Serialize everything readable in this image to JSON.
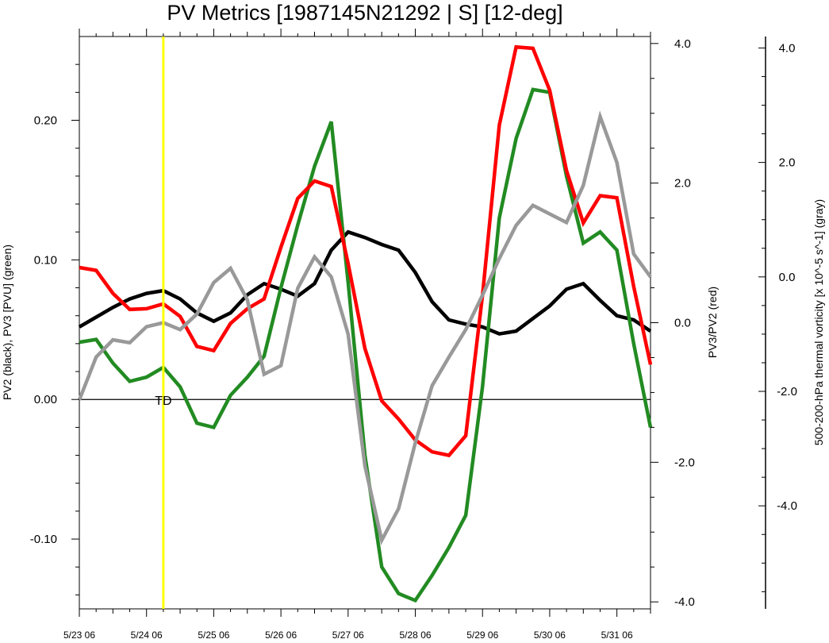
{
  "chart_data": {
    "type": "line",
    "title": "PV Metrics [1987145N21292 | S] [12-deg]",
    "x_tick_labels": [
      "5/23 06",
      "5/24 06",
      "5/25 06",
      "5/26 06",
      "5/27 06",
      "5/28 06",
      "5/29 06",
      "5/30 06",
      "5/31 06"
    ],
    "x_tick_days": [
      0,
      1,
      2,
      3,
      4,
      5,
      6,
      7,
      8
    ],
    "x_range_days": [
      0,
      8.5
    ],
    "x_step_days": 0.25,
    "left_axis": {
      "label": "PV2 (black), PV3 [PVU] (green)",
      "range": [
        -0.15,
        0.26
      ],
      "ticks": [
        -0.1,
        0.0,
        0.1,
        0.2
      ],
      "tick_labels": [
        "-0.10",
        "0.00",
        "0.10",
        "0.20"
      ]
    },
    "right_axis": {
      "label": "PV3/PV2 (red)",
      "range": [
        -4.1,
        4.1
      ],
      "ticks": [
        -4.0,
        -2.0,
        0.0,
        2.0,
        4.0
      ],
      "tick_labels": [
        "-4.0",
        "-2.0",
        "0.0",
        "2.0",
        "4.0"
      ]
    },
    "far_right_axis": {
      "label": "500-200-hPa thermal vorticity [x 10^-5 s^-1] (gray)",
      "range": [
        -5.8,
        4.2
      ],
      "ticks": [
        -4.0,
        -2.0,
        0.0,
        2.0,
        4.0
      ],
      "tick_labels": [
        "-4.0",
        "-2.0",
        "0.0",
        "2.0",
        "4.0"
      ]
    },
    "series": [
      {
        "axis": "left",
        "color": "#000000",
        "values": [
          0.052,
          0.059,
          0.066,
          0.072,
          0.076,
          0.078,
          0.072,
          0.062,
          0.056,
          0.062,
          0.075,
          0.083,
          0.079,
          0.074,
          0.083,
          0.107,
          0.12,
          0.116,
          0.111,
          0.107,
          0.091,
          0.07,
          0.057,
          0.054,
          0.052,
          0.047,
          0.049,
          0.058,
          0.067,
          0.079,
          0.083,
          0.071,
          0.06,
          0.057,
          0.049
        ]
      },
      {
        "axis": "left",
        "color": "#228B22",
        "values": [
          0.041,
          0.043,
          0.026,
          0.013,
          0.016,
          0.023,
          0.009,
          -0.017,
          -0.02,
          0.003,
          0.016,
          0.031,
          0.08,
          0.125,
          0.167,
          0.199,
          0.084,
          -0.04,
          -0.12,
          -0.139,
          -0.144,
          -0.126,
          -0.106,
          -0.083,
          0.009,
          0.13,
          0.187,
          0.222,
          0.22,
          0.16,
          0.112,
          0.12,
          0.107,
          0.04,
          -0.02
        ]
      },
      {
        "axis": "right",
        "color": "#ff0000",
        "values": [
          0.79,
          0.75,
          0.42,
          0.19,
          0.2,
          0.27,
          0.09,
          -0.34,
          -0.4,
          -0.01,
          0.2,
          0.34,
          1.08,
          1.78,
          2.03,
          1.95,
          0.85,
          -0.37,
          -1.12,
          -1.38,
          -1.68,
          -1.85,
          -1.9,
          -1.62,
          0.39,
          2.83,
          3.95,
          3.93,
          3.33,
          2.18,
          1.43,
          1.82,
          1.79,
          0.52,
          -0.6
        ]
      },
      {
        "axis": "far_right",
        "color": "#999999",
        "values": [
          -2.15,
          -1.4,
          -1.1,
          -1.15,
          -0.87,
          -0.8,
          -0.92,
          -0.65,
          -0.1,
          0.15,
          -0.4,
          -1.7,
          -1.55,
          -0.2,
          0.35,
          0.0,
          -1.0,
          -3.3,
          -4.6,
          -4.05,
          -2.9,
          -1.9,
          -1.4,
          -0.92,
          -0.32,
          0.32,
          0.9,
          1.25,
          1.1,
          0.95,
          1.6,
          2.8,
          2.0,
          0.4,
          0.0
        ]
      }
    ],
    "annotations": [
      {
        "label": "TD",
        "x_day": 1.25
      }
    ],
    "zero_reference_line": 0.0,
    "legend": "none",
    "grid": false
  }
}
